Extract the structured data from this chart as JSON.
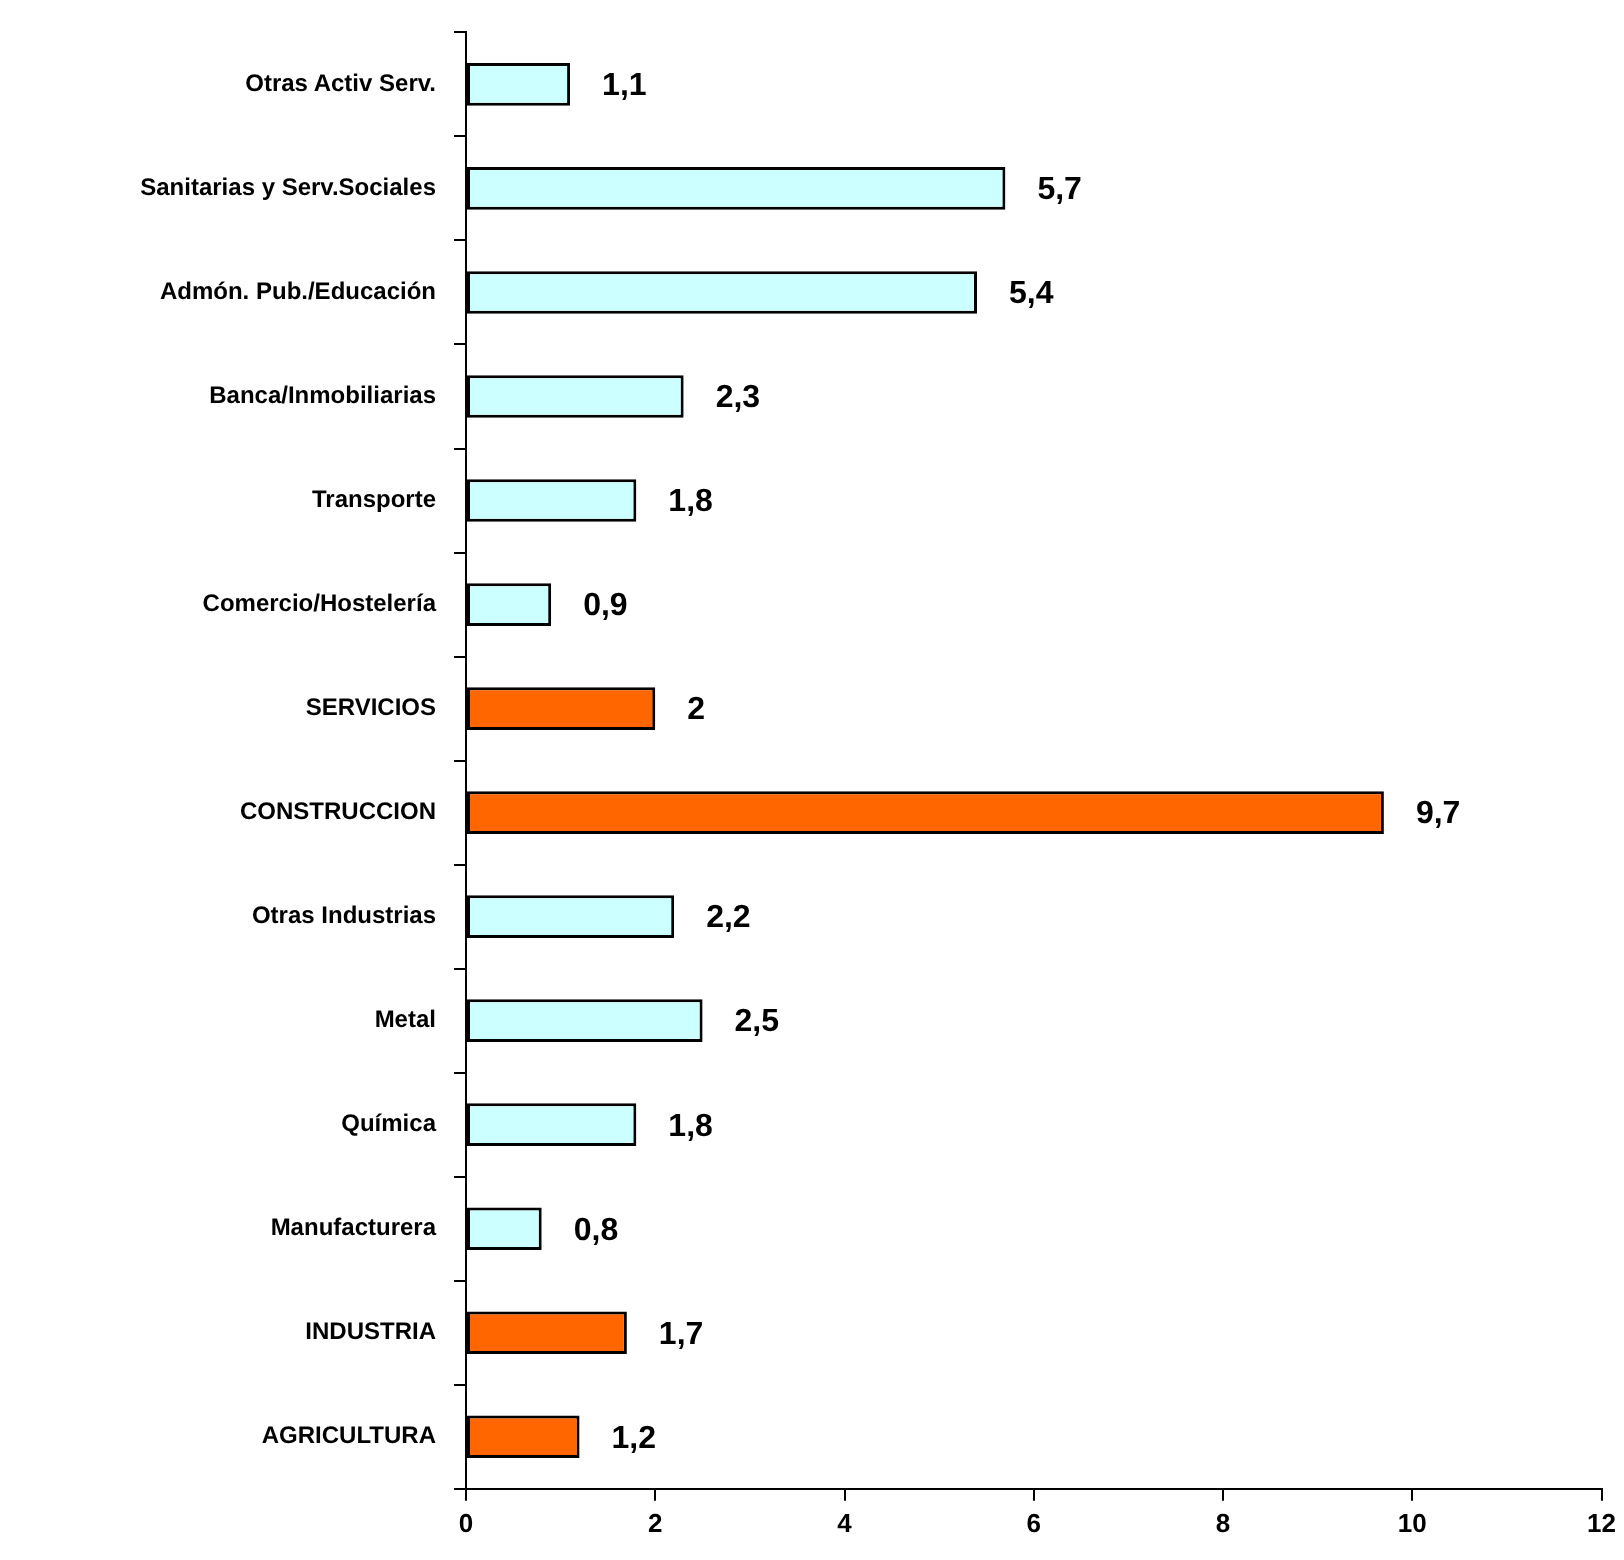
{
  "chart_data": {
    "type": "bar",
    "orientation": "horizontal",
    "categories": [
      "Otras Activ Serv.",
      "Sanitarias y Serv.Sociales",
      "Admón. Pub./Educación",
      "Banca/Inmobiliarias",
      "Transporte",
      "Comercio/Hostelería",
      "SERVICIOS",
      "CONSTRUCCION",
      "Otras Industrias",
      "Metal",
      "Química",
      "Manufacturera",
      "INDUSTRIA",
      "AGRICULTURA"
    ],
    "values": [
      1.1,
      5.7,
      5.4,
      2.3,
      1.8,
      0.9,
      2,
      9.7,
      2.2,
      2.5,
      1.8,
      0.8,
      1.7,
      1.2
    ],
    "value_labels": [
      "1,1",
      "5,7",
      "5,4",
      "2,3",
      "1,8",
      "0,9",
      "2",
      "9,7",
      "2,2",
      "2,5",
      "1,8",
      "0,8",
      "1,7",
      "1,2"
    ],
    "colors": [
      "#ccffff",
      "#ccffff",
      "#ccffff",
      "#ccffff",
      "#ccffff",
      "#ccffff",
      "#ff6600",
      "#ff6600",
      "#ccffff",
      "#ccffff",
      "#ccffff",
      "#ccffff",
      "#ff6600",
      "#ff6600"
    ],
    "xlim": [
      0,
      12
    ],
    "xticks": [
      0,
      2,
      4,
      6,
      8,
      10,
      12
    ],
    "grid": false,
    "legend": false
  }
}
